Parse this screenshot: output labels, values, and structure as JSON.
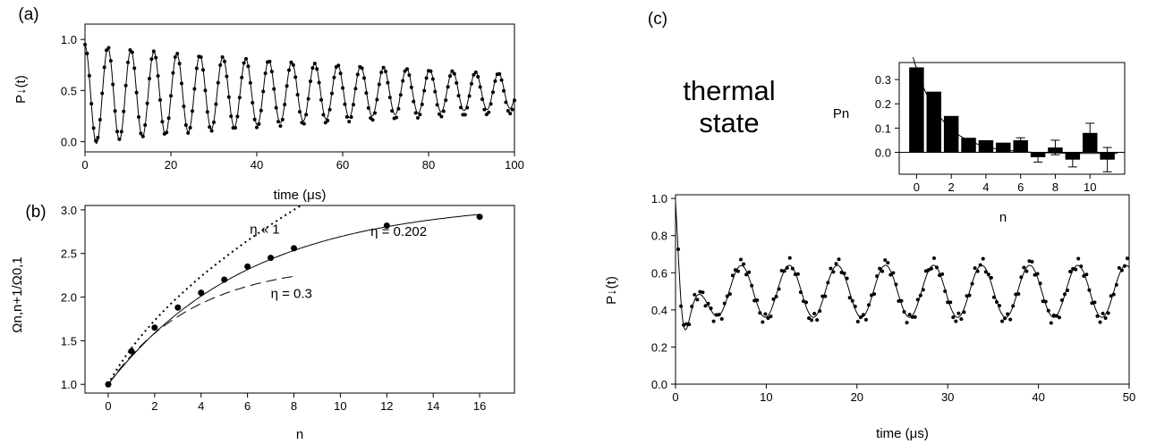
{
  "chart_data": [
    {
      "panel": "(a)",
      "type": "line",
      "xlabel": "time (μs)",
      "ylabel": "P↓(t)",
      "xlim": [
        0,
        100
      ],
      "ylim": [
        -0.1,
        1.15
      ],
      "xticks": [
        0,
        20,
        40,
        60,
        80,
        100
      ],
      "yticks": [
        0.0,
        0.5,
        1.0
      ],
      "x": [
        0,
        5.3,
        10.6,
        15.9,
        21.2,
        26.5,
        31.8,
        37.1,
        42.4,
        47.7,
        53.0,
        58.3,
        63.6,
        68.9,
        74.2,
        79.5,
        84.8,
        90.1,
        95.4,
        100
      ],
      "series": [
        {
          "style": "points",
          "values": [
            1.0,
            1.05,
            0.93,
            0.93,
            0.9,
            0.87,
            0.85,
            0.82,
            0.85,
            0.81,
            0.77,
            0.73,
            0.73,
            0.7,
            0.67,
            0.64,
            0.64,
            0.62,
            0.63,
            0.45
          ]
        },
        {
          "style": "solid-line",
          "values": [
            1.0,
            0.98,
            0.94,
            0.92,
            0.89,
            0.86,
            0.84,
            0.82,
            0.8,
            0.78,
            0.76,
            0.74,
            0.72,
            0.71,
            0.69,
            0.67,
            0.66,
            0.65,
            0.64,
            0.45
          ]
        }
      ],
      "grid": false
    },
    {
      "panel": "(b)",
      "type": "scatter",
      "xlabel": "n",
      "ylabel": "Ωn,n+1/Ω0,1",
      "xlim": [
        -1,
        17.5
      ],
      "ylim": [
        0.9,
        3.05
      ],
      "xticks": [
        0,
        2,
        4,
        6,
        8,
        10,
        12,
        14,
        16
      ],
      "yticks": [
        1.0,
        1.5,
        2.0,
        2.5,
        3.0
      ],
      "points": {
        "x": [
          0,
          1,
          2,
          3,
          4,
          5,
          6,
          7,
          8,
          12,
          16
        ],
        "y": [
          1.0,
          1.38,
          1.65,
          1.88,
          2.05,
          2.2,
          2.35,
          2.45,
          2.56,
          2.82,
          2.92
        ]
      },
      "annotations": [
        "η « 1",
        "η = 0.202",
        "η = 0.3"
      ],
      "grid": false
    },
    {
      "panel": "(c)",
      "type": "line",
      "xlabel": "time (μs)",
      "ylabel": "P↓(t)",
      "xlim": [
        0,
        50
      ],
      "ylim": [
        0.0,
        1.02
      ],
      "xticks": [
        0,
        10,
        20,
        30,
        40,
        50
      ],
      "yticks": [
        0.0,
        0.2,
        0.4,
        0.6,
        0.8,
        1.0
      ],
      "annotation": [
        "thermal",
        "state"
      ],
      "grid": false,
      "inset": {
        "type": "bar",
        "xlabel": "n",
        "ylabel": "Pn",
        "xlim": [
          -1,
          12
        ],
        "ylim": [
          -0.09,
          0.37
        ],
        "xticks": [
          0,
          2,
          4,
          6,
          8,
          10
        ],
        "yticks": [
          0.0,
          0.1,
          0.2,
          0.3
        ],
        "categories": [
          0,
          1,
          2,
          3,
          4,
          5,
          6,
          7,
          8,
          9,
          10,
          11
        ],
        "values": [
          0.35,
          0.25,
          0.15,
          0.06,
          0.05,
          0.04,
          0.05,
          -0.02,
          0.02,
          -0.03,
          0.08,
          -0.03
        ],
        "errors": [
          0.0,
          0.0,
          0.0,
          0.0,
          0.0,
          0.0,
          0.01,
          0.02,
          0.03,
          0.03,
          0.04,
          0.05
        ]
      }
    }
  ],
  "labels": {
    "a": "(a)",
    "b": "(b)",
    "c": "(c)"
  }
}
